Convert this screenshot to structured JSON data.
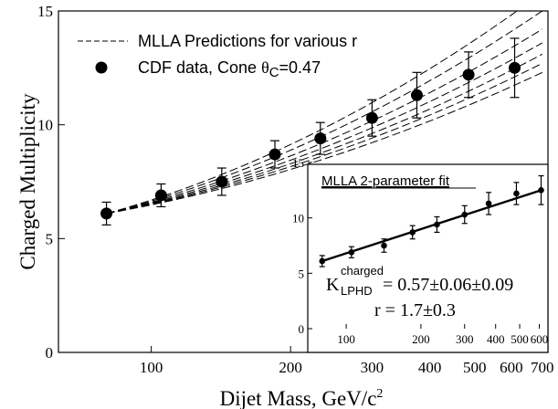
{
  "chart_data": [
    {
      "type": "scatter",
      "xlabel": "Dijet Mass,  GeV/c",
      "xlabel_sup": "2",
      "ylabel": "Charged Multiplicity",
      "xscale": "log",
      "xlim": [
        63,
        720
      ],
      "ylim": [
        0,
        15
      ],
      "x_ticks": [
        100,
        200,
        300,
        400,
        500,
        600,
        700
      ],
      "x_tick_labels": [
        "100",
        "200",
        "300",
        "400",
        "500",
        "600",
        "700"
      ],
      "y_ticks": [
        0,
        5,
        10,
        15
      ],
      "y_tick_labels": [
        "0",
        "5",
        "10",
        "15"
      ],
      "legend": {
        "placement": "top-left",
        "entries": [
          {
            "kind": "dashed",
            "label": "MLLA Predictions for various r"
          },
          {
            "kind": "marker",
            "label_main": "CDF data, Cone ",
            "label_theta": "θ",
            "label_sub": "C",
            "label_tail": "=0.47"
          }
        ]
      },
      "series": [
        {
          "name": "CDF data, Cone θC=0.47",
          "points": [
            {
              "x": 80,
              "y": 6.1,
              "err": 0.5
            },
            {
              "x": 105,
              "y": 6.9,
              "err": 0.5
            },
            {
              "x": 142,
              "y": 7.5,
              "err": 0.6
            },
            {
              "x": 185,
              "y": 8.7,
              "err": 0.6
            },
            {
              "x": 232,
              "y": 9.4,
              "err": 0.7
            },
            {
              "x": 300,
              "y": 10.3,
              "err": 0.8
            },
            {
              "x": 375,
              "y": 11.3,
              "err": 1.0
            },
            {
              "x": 485,
              "y": 12.2,
              "err": 1.0
            },
            {
              "x": 610,
              "y": 12.5,
              "err": 1.3
            }
          ]
        }
      ],
      "mlla_curves": {
        "x_start": 80,
        "y_start": 6.1,
        "end_values_at_700": [
          15.8,
          15.0,
          14.2,
          13.6,
          13.1,
          12.7,
          12.3
        ]
      }
    },
    {
      "type": "scatter",
      "title": "MLLA 2-parameter fit",
      "xscale": "log",
      "xlim": [
        70,
        650
      ],
      "ylim": [
        0,
        15
      ],
      "x_ticks": [
        100,
        200,
        300,
        400,
        500,
        600
      ],
      "x_tick_labels": [
        "100",
        "200",
        "300",
        "400",
        "500",
        "600"
      ],
      "y_ticks": [
        0,
        5,
        10,
        15
      ],
      "y_tick_labels": [
        "0",
        "5",
        "10",
        "15"
      ],
      "fit_line": {
        "x": [
          80,
          610
        ],
        "y": [
          6.1,
          12.5
        ]
      },
      "annotations": {
        "k_label": "K",
        "k_sup": "charged",
        "k_sub": "LPHD",
        "k_value": "= 0.57",
        "k_err1": "±0.06",
        "k_err2": "±0.09",
        "r_text": "r = 1.7",
        "r_err": "±0.3"
      }
    }
  ]
}
